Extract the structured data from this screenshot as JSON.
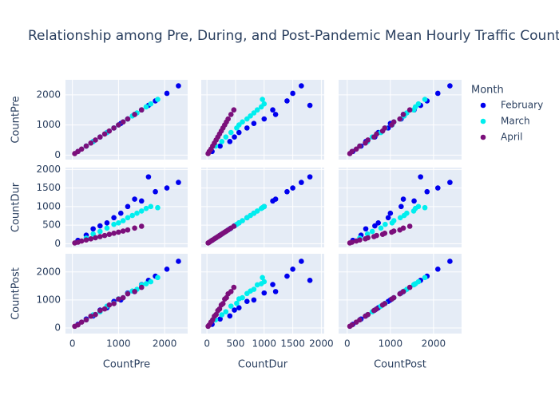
{
  "chart_data": {
    "type": "splom",
    "title": "Relationship among Pre, During, and Post-Pandemic Mean Hourly Traffic Counts",
    "dimensions": [
      {
        "name": "CountPre",
        "lim": [
          -150,
          2500
        ],
        "ticks": [
          0,
          1000,
          2000
        ]
      },
      {
        "name": "CountDur",
        "lim": [
          -100,
          2050
        ],
        "ticks": [
          0,
          500,
          1000,
          1500,
          2000
        ]
      },
      {
        "name": "CountPost",
        "lim": [
          -200,
          2650
        ],
        "ticks": [
          0,
          1000,
          2000
        ]
      }
    ],
    "legend_title": "Month",
    "series": [
      {
        "name": "February",
        "color": "#0000ee",
        "data": [
          [
            120,
            300,
            450,
            600,
            750,
            900,
            1050,
            1200,
            1350,
            1500,
            1650,
            1800,
            2050,
            2300
          ],
          [
            90,
            230,
            400,
            480,
            560,
            700,
            820,
            1000,
            1200,
            1150,
            1800,
            1400,
            1500,
            1650
          ],
          [
            130,
            320,
            430,
            640,
            720,
            950,
            1000,
            1250,
            1300,
            1550,
            1700,
            1850,
            2100,
            2380
          ]
        ]
      },
      {
        "name": "March",
        "color": "#00eeee",
        "data": [
          [
            300,
            450,
            600,
            750,
            900,
            1000,
            1100,
            1200,
            1300,
            1400,
            1500,
            1600,
            1700,
            1850
          ],
          [
            150,
            260,
            330,
            420,
            520,
            560,
            620,
            700,
            760,
            820,
            880,
            950,
            1000,
            970
          ],
          [
            290,
            470,
            580,
            780,
            880,
            1040,
            1080,
            1230,
            1320,
            1380,
            1540,
            1580,
            1650,
            1800
          ]
        ]
      },
      {
        "name": "April",
        "color": "#7b0f7b",
        "data": [
          [
            50,
            120,
            200,
            300,
            400,
            500,
            600,
            700,
            800,
            900,
            1000,
            1100,
            1200,
            1350,
            1500
          ],
          [
            20,
            40,
            70,
            100,
            130,
            160,
            190,
            220,
            250,
            280,
            310,
            340,
            370,
            420,
            470
          ],
          [
            60,
            110,
            210,
            290,
            420,
            480,
            620,
            680,
            820,
            870,
            1030,
            1080,
            1220,
            1300,
            1450
          ]
        ]
      }
    ]
  }
}
